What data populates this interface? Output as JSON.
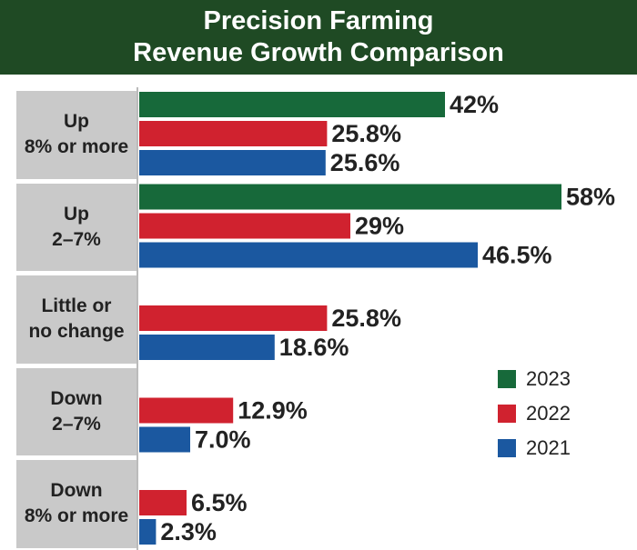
{
  "chart_data": {
    "type": "bar",
    "orientation": "horizontal",
    "title": "Precision Farming\nRevenue Growth Comparison",
    "categories": [
      "Up\n8% or more",
      "Up\n2–7%",
      "Little or\nno change",
      "Down\n2–7%",
      "Down\n8% or more"
    ],
    "series": [
      {
        "name": "2023",
        "color": "#17693a",
        "values": [
          42,
          58,
          null,
          null,
          null
        ],
        "value_labels": [
          "42%",
          "58%",
          null,
          null,
          null
        ]
      },
      {
        "name": "2022",
        "color": "#d0222f",
        "values": [
          25.8,
          29,
          25.8,
          12.9,
          6.5
        ],
        "value_labels": [
          "25.8%",
          "29%",
          "25.8%",
          "12.9%",
          "6.5%"
        ]
      },
      {
        "name": "2021",
        "color": "#1b58a0",
        "values": [
          25.6,
          46.5,
          18.6,
          7.0,
          2.3
        ],
        "value_labels": [
          "25.6%",
          "46.5%",
          "18.6%",
          "7.0%",
          "2.3%"
        ]
      }
    ],
    "legend": "lower-right"
  }
}
